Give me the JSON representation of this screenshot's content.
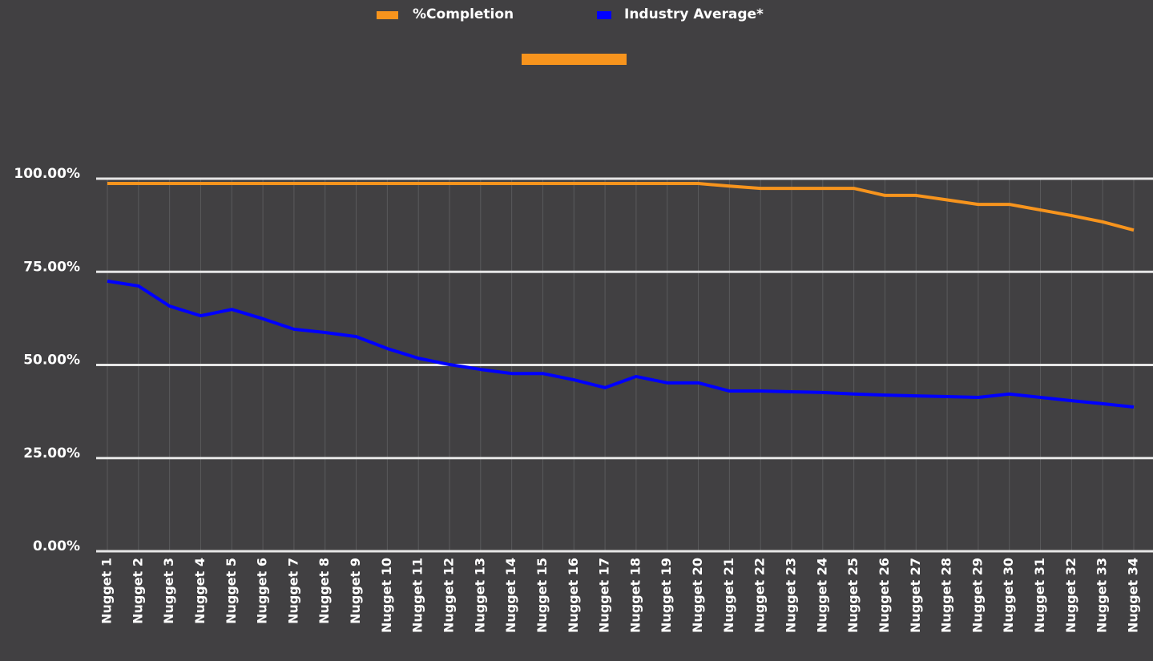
{
  "chart_data": {
    "type": "line",
    "categories": [
      "Nugget 1",
      "Nugget 2",
      "Nugget 3",
      "Nugget 4",
      "Nugget 5",
      "Nugget 6",
      "Nugget 7",
      "Nugget 8",
      "Nugget 9",
      "Nugget 10",
      "Nugget 11",
      "Nugget 12",
      "Nugget 13",
      "Nugget 14",
      "Nugget 15",
      "Nugget 16",
      "Nugget 17",
      "Nugget 18",
      "Nugget 19",
      "Nugget 20",
      "Nugget 21",
      "Nugget 22",
      "Nugget 23",
      "Nugget 24",
      "Nugget 25",
      "Nugget 26",
      "Nugget 27",
      "Nugget 28",
      "Nugget 29",
      "Nugget 30",
      "Nugget 31",
      "Nugget 32",
      "Nugget 33",
      "Nugget 34"
    ],
    "series": [
      {
        "name": "%Completion",
        "color": "#f7941d",
        "values": [
          98.7,
          98.7,
          98.7,
          98.7,
          98.7,
          98.7,
          98.7,
          98.7,
          98.7,
          98.7,
          98.7,
          98.7,
          98.7,
          98.7,
          98.7,
          98.7,
          98.7,
          98.7,
          98.7,
          98.7,
          98.0,
          97.4,
          97.4,
          97.4,
          97.4,
          95.5,
          95.5,
          94.3,
          93.1,
          93.1,
          91.6,
          90.1,
          88.4,
          86.2
        ]
      },
      {
        "name": "Industry Average*",
        "color": "#0000ff",
        "values": [
          72.5,
          71.2,
          65.8,
          63.2,
          64.9,
          62.4,
          59.6,
          58.7,
          57.6,
          54.4,
          51.8,
          50.1,
          48.8,
          47.7,
          47.7,
          46.0,
          43.9,
          46.9,
          45.2,
          45.2,
          43.0,
          43.0,
          42.8,
          42.6,
          42.2,
          41.9,
          41.7,
          41.5,
          41.3,
          42.2,
          41.3,
          40.4,
          39.6,
          38.7
        ]
      }
    ],
    "ylim": [
      0,
      100
    ],
    "yticks": [
      {
        "value": 0,
        "label": "0.00%"
      },
      {
        "value": 25,
        "label": "25.00%"
      },
      {
        "value": 50,
        "label": "50.00%"
      },
      {
        "value": 75,
        "label": "75.00%"
      },
      {
        "value": 100,
        "label": "100.00%"
      }
    ],
    "grid": true,
    "legend": "top"
  }
}
